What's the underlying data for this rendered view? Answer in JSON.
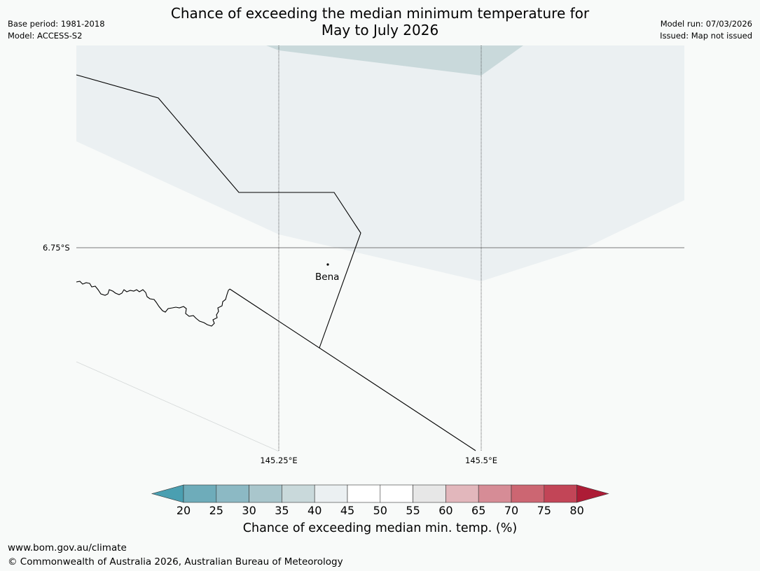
{
  "header": {
    "base_period": "Base period: 1981-2018",
    "model": "Model: ACCESS-S2",
    "title_line1": "Chance of exceeding the median minimum temperature for",
    "title_line2": "May to July 2026",
    "model_run": "Model run: 07/03/2026",
    "issued": "Issued: Map not issued"
  },
  "map": {
    "lat_label": "6.75°S",
    "lon_labels": [
      "145.25°E",
      "145.5°E"
    ],
    "place": "Bena"
  },
  "colorbar": {
    "ticks": [
      "20",
      "25",
      "30",
      "35",
      "40",
      "45",
      "50",
      "55",
      "60",
      "65",
      "70",
      "75",
      "80"
    ],
    "colors": [
      "#4a9fb1",
      "#6eacba",
      "#8cb9c4",
      "#a9c6cc",
      "#c9d9db",
      "#ebf0f2",
      "#ffffff",
      "#ffffff",
      "#e7e7e7",
      "#e2b7bc",
      "#d68c96",
      "#cc6672",
      "#c24557",
      "#ad1c36"
    ],
    "label": "Chance of exceeding median min. temp. (%)"
  },
  "footer": {
    "url": "www.bom.gov.au/climate",
    "copyright": "© Commonwealth of Australia 2026, Australian Bureau of Meteorology"
  }
}
